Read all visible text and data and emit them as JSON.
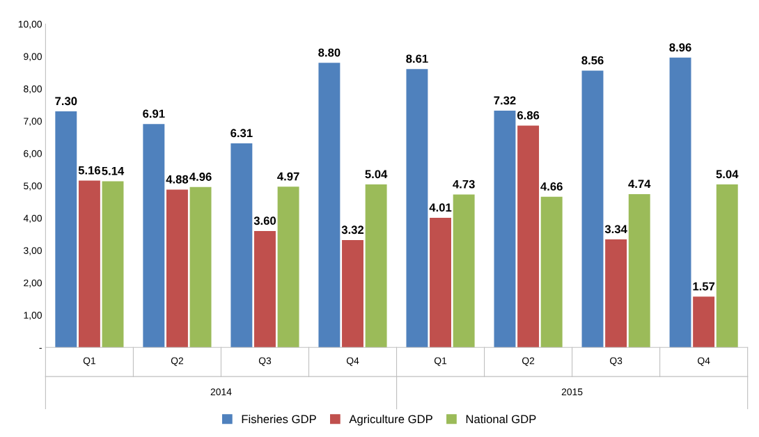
{
  "chart_data": {
    "type": "bar",
    "categories": [
      "Q1",
      "Q2",
      "Q3",
      "Q4",
      "Q1",
      "Q2",
      "Q3",
      "Q4"
    ],
    "series": [
      {
        "name": "Fisheries GDP",
        "color": "#4f81bd",
        "values": [
          7.3,
          6.91,
          6.31,
          8.8,
          8.61,
          7.32,
          8.56,
          8.96
        ],
        "value_labels": [
          "7.30",
          "6.91",
          "6.31",
          "8.80",
          "8.61",
          "7.32",
          "8.56",
          "8.96"
        ]
      },
      {
        "name": "Agriculture GDP",
        "color": "#c0504d",
        "values": [
          5.16,
          4.88,
          3.6,
          3.32,
          4.01,
          6.86,
          3.34,
          1.57
        ],
        "value_labels": [
          "5.16",
          "4.88",
          "3.60",
          "3.32",
          "4.01",
          "6.86",
          "3.34",
          "1.57"
        ]
      },
      {
        "name": "National GDP",
        "color": "#9bbb59",
        "values": [
          5.14,
          4.96,
          4.97,
          5.04,
          4.73,
          4.66,
          4.74,
          5.04
        ],
        "value_labels": [
          "5.14",
          "4.96",
          "4.97",
          "5.04",
          "4.73",
          "4.66",
          "4.74",
          "5.04"
        ]
      }
    ],
    "annotations": [
      "2014",
      "2015"
    ],
    "ylim": [
      0,
      10
    ],
    "yticks": [
      {
        "value": 0,
        "label": "-"
      },
      {
        "value": 1,
        "label": "1,00"
      },
      {
        "value": 2,
        "label": "2,00"
      },
      {
        "value": 3,
        "label": "3,00"
      },
      {
        "value": 4,
        "label": "4,00"
      },
      {
        "value": 5,
        "label": "5,00"
      },
      {
        "value": 6,
        "label": "6,00"
      },
      {
        "value": 7,
        "label": "7,00"
      },
      {
        "value": 8,
        "label": "8,00"
      },
      {
        "value": 9,
        "label": "9,00"
      },
      {
        "value": 10,
        "label": "10,00"
      }
    ],
    "grid": false,
    "legend": "bottom"
  }
}
